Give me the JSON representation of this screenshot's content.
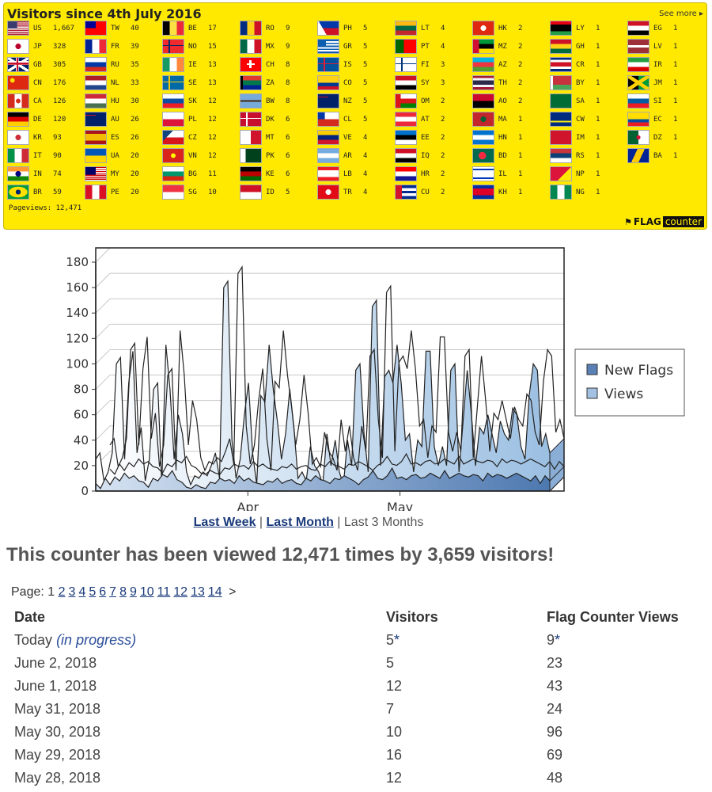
{
  "banner": {
    "title": "Visitors since 4th July 2016",
    "see_more": "See more",
    "pageviews_label": "Pageviews: 12,471",
    "brand_a": "FLAG",
    "brand_b": "counter",
    "background": "#ffe900",
    "flags": [
      {
        "code": "US",
        "count": "1,667",
        "design": "us"
      },
      {
        "code": "JP",
        "count": "328",
        "design": "jp"
      },
      {
        "code": "GB",
        "count": "305",
        "design": "gb"
      },
      {
        "code": "CN",
        "count": "176",
        "design": "cn"
      },
      {
        "code": "CA",
        "count": "126",
        "design": "ca"
      },
      {
        "code": "DE",
        "count": "120",
        "design": "de"
      },
      {
        "code": "KR",
        "count": "93",
        "design": "kr"
      },
      {
        "code": "IT",
        "count": "90",
        "design": "it"
      },
      {
        "code": "IN",
        "count": "74",
        "design": "in"
      },
      {
        "code": "BR",
        "count": "59",
        "design": "br"
      },
      {
        "code": "TW",
        "count": "40",
        "design": "tw"
      },
      {
        "code": "FR",
        "count": "39",
        "design": "fr"
      },
      {
        "code": "RU",
        "count": "35",
        "design": "ru"
      },
      {
        "code": "NL",
        "count": "33",
        "design": "nl"
      },
      {
        "code": "HU",
        "count": "30",
        "design": "hu"
      },
      {
        "code": "AU",
        "count": "26",
        "design": "au"
      },
      {
        "code": "ES",
        "count": "26",
        "design": "es"
      },
      {
        "code": "UA",
        "count": "20",
        "design": "ua"
      },
      {
        "code": "MY",
        "count": "20",
        "design": "my"
      },
      {
        "code": "PE",
        "count": "20",
        "design": "pe"
      },
      {
        "code": "BE",
        "count": "17",
        "design": "be"
      },
      {
        "code": "NO",
        "count": "15",
        "design": "no"
      },
      {
        "code": "IE",
        "count": "13",
        "design": "ie"
      },
      {
        "code": "SE",
        "count": "13",
        "design": "se"
      },
      {
        "code": "SK",
        "count": "12",
        "design": "sk"
      },
      {
        "code": "PL",
        "count": "12",
        "design": "pl"
      },
      {
        "code": "CZ",
        "count": "12",
        "design": "cz"
      },
      {
        "code": "VN",
        "count": "12",
        "design": "vn"
      },
      {
        "code": "BG",
        "count": "11",
        "design": "bg"
      },
      {
        "code": "SG",
        "count": "10",
        "design": "sg"
      },
      {
        "code": "RO",
        "count": "9",
        "design": "ro"
      },
      {
        "code": "MX",
        "count": "9",
        "design": "mx"
      },
      {
        "code": "CH",
        "count": "8",
        "design": "ch"
      },
      {
        "code": "ZA",
        "count": "8",
        "design": "za"
      },
      {
        "code": "BW",
        "count": "8",
        "design": "bw"
      },
      {
        "code": "DK",
        "count": "6",
        "design": "dk"
      },
      {
        "code": "MT",
        "count": "6",
        "design": "mt"
      },
      {
        "code": "PK",
        "count": "6",
        "design": "pk"
      },
      {
        "code": "KE",
        "count": "6",
        "design": "ke"
      },
      {
        "code": "ID",
        "count": "5",
        "design": "id"
      },
      {
        "code": "PH",
        "count": "5",
        "design": "ph"
      },
      {
        "code": "GR",
        "count": "5",
        "design": "gr"
      },
      {
        "code": "IS",
        "count": "5",
        "design": "is"
      },
      {
        "code": "CO",
        "count": "5",
        "design": "co"
      },
      {
        "code": "NZ",
        "count": "5",
        "design": "nz"
      },
      {
        "code": "CL",
        "count": "5",
        "design": "cl"
      },
      {
        "code": "VE",
        "count": "4",
        "design": "ve"
      },
      {
        "code": "AR",
        "count": "4",
        "design": "ar"
      },
      {
        "code": "LB",
        "count": "4",
        "design": "lb"
      },
      {
        "code": "TR",
        "count": "4",
        "design": "tr"
      },
      {
        "code": "LT",
        "count": "4",
        "design": "lt"
      },
      {
        "code": "PT",
        "count": "4",
        "design": "pt"
      },
      {
        "code": "FI",
        "count": "3",
        "design": "fi"
      },
      {
        "code": "SY",
        "count": "3",
        "design": "sy"
      },
      {
        "code": "OM",
        "count": "2",
        "design": "om"
      },
      {
        "code": "AT",
        "count": "2",
        "design": "at"
      },
      {
        "code": "EE",
        "count": "2",
        "design": "ee"
      },
      {
        "code": "IQ",
        "count": "2",
        "design": "iq"
      },
      {
        "code": "HR",
        "count": "2",
        "design": "hr"
      },
      {
        "code": "CU",
        "count": "2",
        "design": "cu"
      },
      {
        "code": "HK",
        "count": "2",
        "design": "hk"
      },
      {
        "code": "MZ",
        "count": "2",
        "design": "mz"
      },
      {
        "code": "AZ",
        "count": "2",
        "design": "az"
      },
      {
        "code": "TH",
        "count": "2",
        "design": "th"
      },
      {
        "code": "AO",
        "count": "2",
        "design": "ao"
      },
      {
        "code": "MA",
        "count": "1",
        "design": "ma"
      },
      {
        "code": "HN",
        "count": "1",
        "design": "hn"
      },
      {
        "code": "BD",
        "count": "1",
        "design": "bd"
      },
      {
        "code": "IL",
        "count": "1",
        "design": "il"
      },
      {
        "code": "KH",
        "count": "1",
        "design": "kh"
      },
      {
        "code": "LY",
        "count": "1",
        "design": "ly"
      },
      {
        "code": "GH",
        "count": "1",
        "design": "gh"
      },
      {
        "code": "CR",
        "count": "1",
        "design": "cr"
      },
      {
        "code": "BY",
        "count": "1",
        "design": "by"
      },
      {
        "code": "SA",
        "count": "1",
        "design": "sa"
      },
      {
        "code": "CW",
        "count": "1",
        "design": "cw"
      },
      {
        "code": "IM",
        "count": "1",
        "design": "im"
      },
      {
        "code": "RS",
        "count": "1",
        "design": "rs"
      },
      {
        "code": "NP",
        "count": "1",
        "design": "np"
      },
      {
        "code": "NG",
        "count": "1",
        "design": "ng"
      },
      {
        "code": "EG",
        "count": "1",
        "design": "eg"
      },
      {
        "code": "LV",
        "count": "1",
        "design": "lv"
      },
      {
        "code": "IR",
        "count": "1",
        "design": "ir"
      },
      {
        "code": "JM",
        "count": "1",
        "design": "jm"
      },
      {
        "code": "SI",
        "count": "1",
        "design": "si"
      },
      {
        "code": "EC",
        "count": "1",
        "design": "ec"
      },
      {
        "code": "DZ",
        "count": "1",
        "design": "dz"
      },
      {
        "code": "BA",
        "count": "1",
        "design": "ba"
      }
    ]
  },
  "chart_data": {
    "type": "area",
    "x_ticks": [
      "Apr",
      "May"
    ],
    "ylim": [
      0,
      180
    ],
    "y_ticks": [
      0,
      20,
      40,
      60,
      80,
      100,
      120,
      140,
      160,
      180
    ],
    "grid": true,
    "legend_position": "right",
    "series": [
      {
        "name": "New Flags",
        "color": "#5a80b5",
        "values": [
          6,
          2,
          10,
          5,
          11,
          8,
          14,
          10,
          12,
          8,
          7,
          3,
          10,
          8,
          13,
          11,
          16,
          9,
          7,
          3,
          2,
          5,
          3,
          2,
          7,
          6,
          10,
          8,
          9,
          6,
          12,
          8,
          10,
          7,
          6,
          5,
          8,
          7,
          10,
          6,
          8,
          9,
          6,
          5,
          10,
          8,
          12,
          9,
          8,
          6,
          10,
          9,
          12,
          10,
          8,
          5,
          9,
          11,
          16,
          10,
          9,
          12,
          18,
          10,
          11,
          9,
          12,
          13,
          10,
          11,
          14,
          12,
          10,
          16,
          10,
          12,
          14,
          12,
          11,
          13,
          12,
          8,
          14,
          11,
          13,
          12,
          10,
          12,
          14,
          12,
          10,
          8,
          12,
          6,
          12,
          8
        ]
      },
      {
        "name": "Views",
        "color": "#a3c2e3",
        "values": [
          25,
          30,
          8,
          15,
          30,
          100,
          105,
          25,
          85,
          110,
          30,
          50,
          8,
          25,
          80,
          85,
          5,
          115,
          80,
          25,
          60,
          45,
          15,
          5,
          12,
          10,
          15,
          12,
          20,
          30,
          10,
          160,
          165,
          40,
          10,
          25,
          60,
          85,
          30,
          5,
          75,
          70,
          115,
          80,
          55,
          25,
          45,
          80,
          50,
          10,
          15,
          8,
          35,
          20,
          15,
          5,
          45,
          20,
          40,
          15,
          5,
          40,
          20,
          95,
          100,
          45,
          15,
          145,
          150,
          20,
          90,
          95,
          85,
          115,
          85,
          40,
          45,
          15,
          40,
          35,
          110,
          110,
          35,
          20,
          35,
          20,
          95,
          100,
          15,
          55,
          95,
          60,
          20,
          50,
          45,
          60,
          45,
          30,
          55,
          45,
          40,
          65,
          60,
          35,
          25,
          75,
          100,
          95,
          35,
          45,
          30
        ]
      }
    ]
  },
  "chart_links": {
    "last_week": "Last Week",
    "sep1": " | ",
    "last_month": "Last Month",
    "sep2": " | ",
    "last_3_months": "Last 3 Months"
  },
  "summary": "This counter has been viewed 12,471 times by 3,659 visitors!",
  "pager": {
    "label": "Page:",
    "current": "1",
    "pages": [
      "2",
      "3",
      "4",
      "5",
      "6",
      "7",
      "8",
      "9",
      "10",
      "11",
      "12",
      "13",
      "14"
    ],
    "next": ">"
  },
  "table": {
    "headers": [
      "Date",
      "Visitors",
      "Flag Counter Views"
    ],
    "rows": [
      {
        "date": "Today",
        "note": "(in progress)",
        "visitors": "5",
        "views": "9",
        "star": "*"
      },
      {
        "date": "June 2, 2018",
        "note": "",
        "visitors": "5",
        "views": "23",
        "star": ""
      },
      {
        "date": "June 1, 2018",
        "note": "",
        "visitors": "12",
        "views": "43",
        "star": ""
      },
      {
        "date": "May 31, 2018",
        "note": "",
        "visitors": "7",
        "views": "24",
        "star": ""
      },
      {
        "date": "May 30, 2018",
        "note": "",
        "visitors": "10",
        "views": "96",
        "star": ""
      },
      {
        "date": "May 29, 2018",
        "note": "",
        "visitors": "16",
        "views": "69",
        "star": ""
      },
      {
        "date": "May 28, 2018",
        "note": "",
        "visitors": "12",
        "views": "48",
        "star": ""
      }
    ]
  }
}
